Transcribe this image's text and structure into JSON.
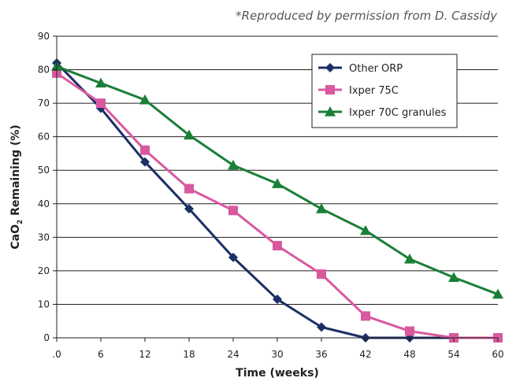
{
  "note": "*Reproduced by permission from D. Cassidy",
  "chart_data": {
    "type": "line",
    "title": "",
    "xlabel": "Time (weeks)",
    "ylabel_main": "CaO",
    "ylabel_sub": "2",
    "ylabel_rest": " Remaining (%)",
    "x_tick_labels": [
      ".0",
      "6",
      "12",
      "18",
      "24",
      "30",
      "36",
      "42",
      "48",
      "54",
      "60"
    ],
    "x": [
      0,
      6,
      12,
      18,
      24,
      30,
      36,
      42,
      48,
      54,
      60
    ],
    "xlim": [
      0,
      60
    ],
    "ylim": [
      0,
      90
    ],
    "yticks": [
      0,
      10,
      20,
      30,
      40,
      50,
      60,
      70,
      80,
      90
    ],
    "grid": "horizontal",
    "legend_position": "top-right",
    "series": [
      {
        "name": "Other ORP",
        "color": "#1b2f66",
        "marker": "diamond",
        "values": [
          82,
          68.5,
          52.5,
          38.5,
          24,
          11.5,
          3.2,
          0,
          0,
          0,
          0
        ]
      },
      {
        "name": "Ixper 75C",
        "color": "#d9599f",
        "marker": "square",
        "values": [
          79,
          70,
          56,
          44.5,
          38,
          27.5,
          19,
          6.5,
          2,
          0,
          0
        ]
      },
      {
        "name": "Ixper 70C granules",
        "color": "#1a7f37",
        "marker": "triangle",
        "values": [
          81,
          76,
          71,
          60.5,
          51.5,
          46,
          38.5,
          32,
          23.5,
          18,
          13
        ]
      }
    ]
  }
}
